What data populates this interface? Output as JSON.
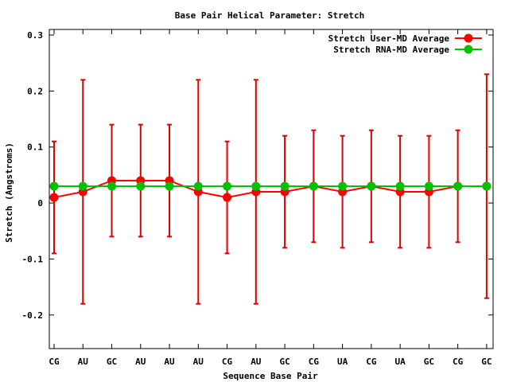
{
  "chart_data": {
    "type": "line",
    "title": "Base Pair Helical Parameter: Stretch",
    "xlabel": "Sequence Base Pair",
    "ylabel": "Stretch (Angstroms)",
    "categories": [
      "CG",
      "AU",
      "GC",
      "AU",
      "AU",
      "AU",
      "CG",
      "AU",
      "GC",
      "CG",
      "UA",
      "CG",
      "UA",
      "GC",
      "CG",
      "GC"
    ],
    "ylim": [
      -0.26,
      0.31
    ],
    "yticks": [
      -0.2,
      -0.1,
      0,
      0.1,
      0.2,
      0.3
    ],
    "ytick_labels": [
      "-0.2",
      "-0.1",
      "0",
      "0.1",
      "0.2",
      "0.3"
    ],
    "grid": false,
    "legend_position": "top-right",
    "series": [
      {
        "name": "Stretch User-MD Average",
        "color": "#ff0000",
        "errorbar_color": "#dd0000",
        "values": [
          0.01,
          0.02,
          0.04,
          0.04,
          0.04,
          0.02,
          0.01,
          0.02,
          0.02,
          0.03,
          0.02,
          0.03,
          0.02,
          0.02,
          0.03,
          0.03
        ],
        "error_low": [
          -0.09,
          -0.18,
          -0.06,
          -0.06,
          -0.06,
          -0.18,
          -0.09,
          -0.18,
          -0.08,
          -0.07,
          -0.08,
          -0.07,
          -0.08,
          -0.08,
          -0.07,
          -0.17
        ],
        "error_high": [
          0.11,
          0.22,
          0.14,
          0.14,
          0.14,
          0.22,
          0.11,
          0.22,
          0.12,
          0.13,
          0.12,
          0.13,
          0.12,
          0.12,
          0.13,
          0.23
        ]
      },
      {
        "name": "Stretch RNA-MD Average",
        "color": "#00c000",
        "values": [
          0.03,
          0.03,
          0.03,
          0.03,
          0.03,
          0.03,
          0.03,
          0.03,
          0.03,
          0.03,
          0.03,
          0.03,
          0.03,
          0.03,
          0.03,
          0.03
        ]
      }
    ]
  }
}
